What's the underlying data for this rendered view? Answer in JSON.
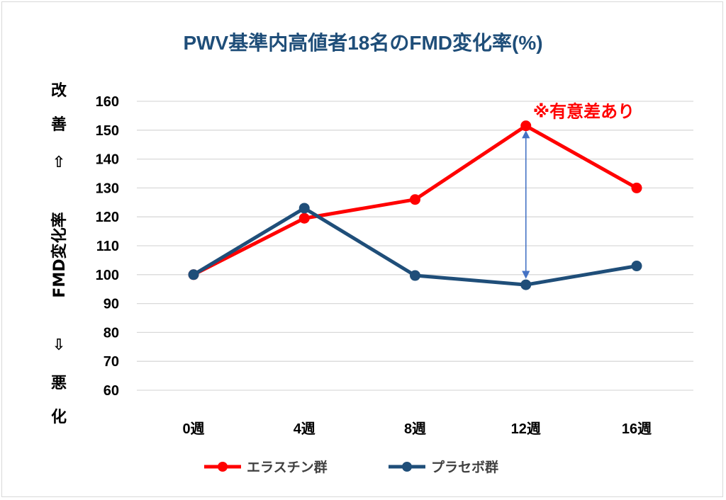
{
  "chart_data": {
    "type": "line",
    "title": "PWV基準内高値者18名のFMD変化率(%)",
    "categories": [
      "0週",
      "4週",
      "8週",
      "12週",
      "16週"
    ],
    "ylim": [
      60,
      160
    ],
    "yticks": [
      60,
      70,
      80,
      90,
      100,
      110,
      120,
      130,
      140,
      150,
      160
    ],
    "grid": true,
    "legend_position": "bottom",
    "ylabel": {
      "top": [
        "改",
        "善",
        "⇧"
      ],
      "middle": "FMD変化率",
      "bottom": [
        "⇩",
        "悪",
        "化"
      ]
    },
    "series": [
      {
        "name": "エラスチン群",
        "color": "#ff0000",
        "values": [
          100,
          119.5,
          126,
          151.5,
          130
        ]
      },
      {
        "name": "プラセボ群",
        "color": "#1f4e79",
        "values": [
          100,
          123,
          99.7,
          96.5,
          103
        ]
      }
    ],
    "annotation": {
      "text": "※有意差あり",
      "category": "12週",
      "color": "#ff0000",
      "arrow_color": "#4472c4"
    }
  }
}
